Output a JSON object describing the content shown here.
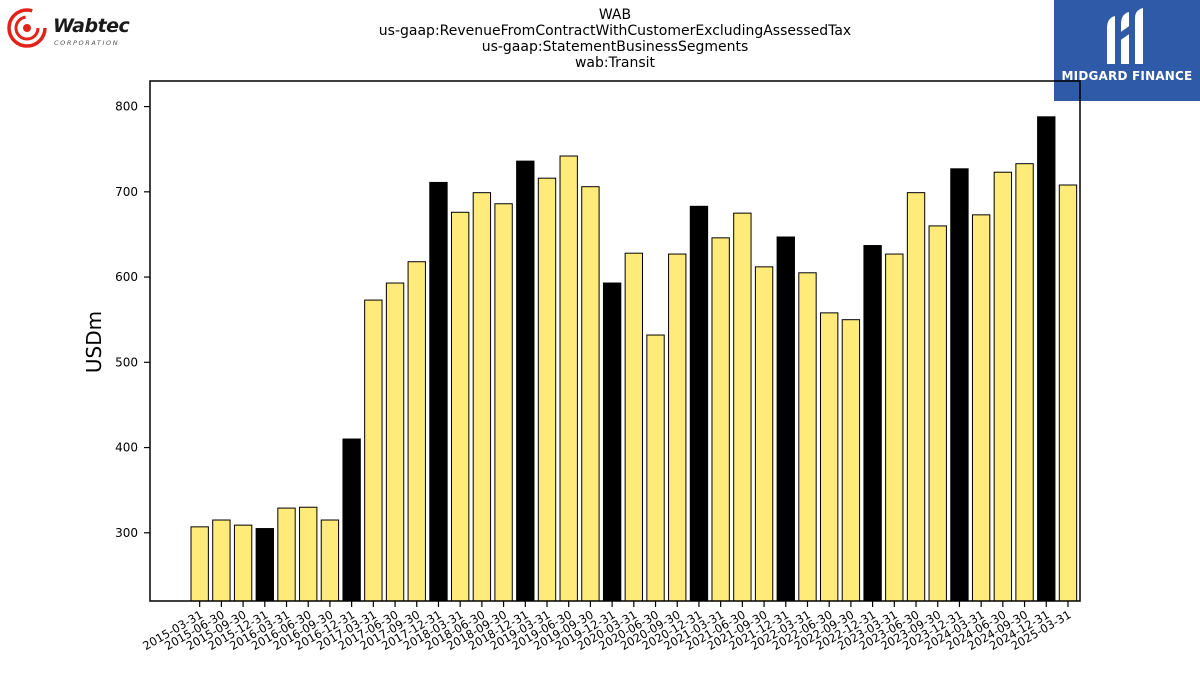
{
  "header": {
    "title_lines": [
      "WAB",
      "us-gaap:RevenueFromContractWithCustomerExcludingAssessedTax",
      "us-gaap:StatementBusinessSegments",
      "wab:Transit"
    ]
  },
  "logos": {
    "left": {
      "name": "Wabtec",
      "sub": "CORPORATION",
      "icon": "wabtec-swirl-icon",
      "color": "#e2231a"
    },
    "right": {
      "name": "MIDGARD FINANCE",
      "icon": "midgard-m-icon",
      "color": "#2f5aa8"
    }
  },
  "colors": {
    "bar_default": "#ffeb7a",
    "bar_highlight": "#000000",
    "bar_edge": "#000000"
  },
  "chart_data": {
    "type": "bar",
    "title": "WAB",
    "ylabel": "USDm",
    "xlabel": "",
    "ylim": [
      220,
      830
    ],
    "yticks": [
      300,
      400,
      500,
      600,
      700,
      800
    ],
    "grid": false,
    "categories": [
      "2015-03-31",
      "2015-06-30",
      "2015-09-30",
      "2015-12-31",
      "2016-03-31",
      "2016-06-30",
      "2016-09-30",
      "2016-12-31",
      "2017-03-31",
      "2017-06-30",
      "2017-09-30",
      "2017-12-31",
      "2018-03-31",
      "2018-06-30",
      "2018-09-30",
      "2018-12-31",
      "2019-03-31",
      "2019-06-30",
      "2019-09-30",
      "2019-12-31",
      "2020-03-31",
      "2020-06-30",
      "2020-09-30",
      "2020-12-31",
      "2021-03-31",
      "2021-06-30",
      "2021-09-30",
      "2021-12-31",
      "2022-03-31",
      "2022-06-30",
      "2022-09-30",
      "2022-12-31",
      "2023-03-31",
      "2023-06-30",
      "2023-09-30",
      "2023-12-31",
      "2024-03-31",
      "2024-06-30",
      "2024-09-30",
      "2024-12-31",
      "2025-03-31"
    ],
    "values": [
      307,
      315,
      309,
      305,
      329,
      330,
      315,
      410,
      573,
      593,
      618,
      711,
      676,
      699,
      686,
      736,
      716,
      742,
      706,
      593,
      628,
      532,
      627,
      683,
      646,
      675,
      612,
      647,
      605,
      558,
      550,
      637,
      627,
      699,
      660,
      727,
      673,
      723,
      733,
      788,
      708
    ],
    "highlighted": [
      false,
      false,
      false,
      true,
      false,
      false,
      false,
      true,
      false,
      false,
      false,
      true,
      false,
      false,
      false,
      true,
      false,
      false,
      false,
      true,
      false,
      false,
      false,
      true,
      false,
      false,
      false,
      true,
      false,
      false,
      false,
      true,
      false,
      false,
      false,
      true,
      false,
      false,
      false,
      true,
      false
    ]
  }
}
